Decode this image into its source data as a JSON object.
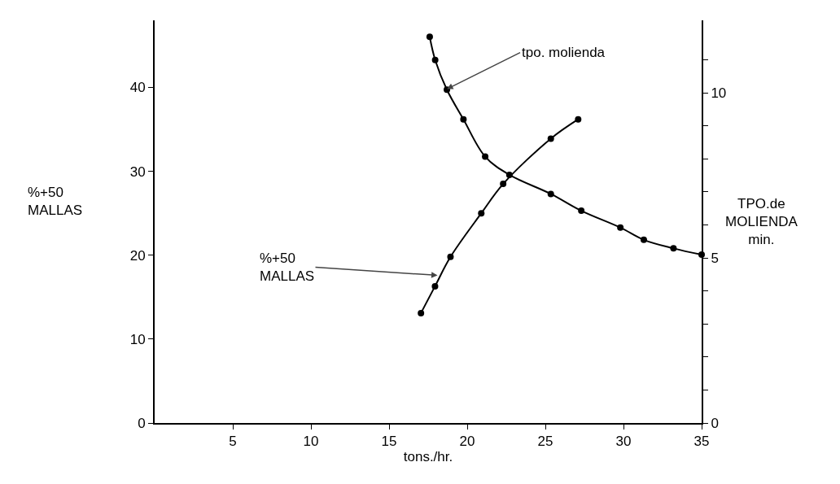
{
  "chart_data": {
    "type": "line",
    "xlabel": "tons./hr.",
    "ylabel": "%+50\nMALLAS",
    "y2label": "TPO.de\nMOLIENDA\nmin.",
    "xlim": [
      0,
      35
    ],
    "xticks": [
      5,
      10,
      15,
      20,
      25,
      30,
      35
    ],
    "ylim": [
      0,
      48
    ],
    "yticks": [
      0,
      10,
      20,
      30,
      40
    ],
    "y2lim": [
      0,
      12.2
    ],
    "y2ticks": [
      0,
      {
        "value": 1,
        "label": null
      },
      {
        "value": 2,
        "label": null
      },
      {
        "value": 3,
        "label": null
      },
      {
        "value": 4,
        "label": null
      },
      5,
      {
        "value": 6,
        "label": null
      },
      {
        "value": 7,
        "label": null
      },
      {
        "value": 8,
        "label": null
      },
      {
        "value": 9,
        "label": null
      },
      10,
      {
        "value": 11,
        "label": null
      }
    ],
    "grid": false,
    "marker": "circle",
    "line_style": "solid",
    "series": [
      {
        "color": "#000000",
        "axis": "y2",
        "x": [
          17.6,
          17.95,
          18.7,
          19.76,
          21.15,
          22.7,
          25.35,
          27.3,
          29.8,
          31.3,
          33.2,
          35
        ],
        "values": [
          11.7,
          11.0,
          10.1,
          9.2,
          8.07,
          7.52,
          6.94,
          6.43,
          5.92,
          5.55,
          5.29,
          5.1
        ]
      },
      {
        "color": "#000000",
        "x": [
          17.04,
          17.94,
          18.93,
          20.9,
          22.3,
          25.35,
          27.1
        ],
        "values": [
          13.1,
          16.3,
          19.8,
          25.0,
          28.5,
          33.9,
          36.2
        ]
      }
    ],
    "annotations": [
      {
        "text": "tpo. molienda",
        "x": 18.7,
        "y": 39.8
      },
      {
        "text": "%+50\nMALLAS",
        "x": 18.1,
        "y": 17.6
      }
    ]
  }
}
